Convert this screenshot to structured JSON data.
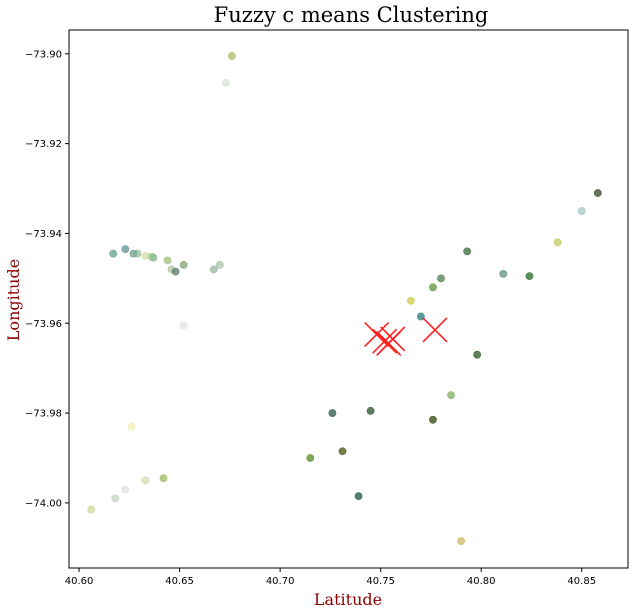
{
  "chart_data": {
    "type": "scatter",
    "title": "Fuzzy c means Clustering",
    "xlabel": "Latitude",
    "ylabel": "Longitude",
    "xlim": [
      40.595,
      40.873
    ],
    "ylim": [
      -74.0145,
      -73.8947
    ],
    "x_ticks": [
      {
        "value": 40.6,
        "label": "40.60"
      },
      {
        "value": 40.65,
        "label": "40.65"
      },
      {
        "value": 40.7,
        "label": "40.70"
      },
      {
        "value": 40.75,
        "label": "40.75"
      },
      {
        "value": 40.8,
        "label": "40.80"
      },
      {
        "value": 40.85,
        "label": "40.85"
      }
    ],
    "y_ticks": [
      {
        "value": -73.9,
        "label": "−73.90"
      },
      {
        "value": -73.92,
        "label": "−73.92"
      },
      {
        "value": -73.94,
        "label": "−73.94"
      },
      {
        "value": -73.96,
        "label": "−73.96"
      },
      {
        "value": -73.98,
        "label": "−73.98"
      },
      {
        "value": -74.0,
        "label": "−74.00"
      }
    ],
    "grid": false,
    "legend": "none",
    "points": [
      {
        "x": 40.676,
        "y": -73.9005,
        "color": "#a3b55c",
        "opacity": 0.7
      },
      {
        "x": 40.673,
        "y": -73.9065,
        "color": "#c9d4c9",
        "opacity": 0.5
      },
      {
        "x": 40.858,
        "y": -73.931,
        "color": "#4a5a3a",
        "opacity": 0.85
      },
      {
        "x": 40.85,
        "y": -73.935,
        "color": "#8fb8b8",
        "opacity": 0.6
      },
      {
        "x": 40.838,
        "y": -73.942,
        "color": "#bfc95a",
        "opacity": 0.7
      },
      {
        "x": 40.793,
        "y": -73.944,
        "color": "#4f7a4f",
        "opacity": 0.85
      },
      {
        "x": 40.811,
        "y": -73.949,
        "color": "#5a8a7a",
        "opacity": 0.7
      },
      {
        "x": 40.824,
        "y": -73.9495,
        "color": "#3f7a3f",
        "opacity": 0.85
      },
      {
        "x": 40.78,
        "y": -73.95,
        "color": "#5a8a5a",
        "opacity": 0.8
      },
      {
        "x": 40.776,
        "y": -73.952,
        "color": "#6a9a4a",
        "opacity": 0.8
      },
      {
        "x": 40.765,
        "y": -73.955,
        "color": "#c9c93a",
        "opacity": 0.7
      },
      {
        "x": 40.77,
        "y": -73.9585,
        "color": "#2a7a7a",
        "opacity": 0.75
      },
      {
        "x": 40.798,
        "y": -73.967,
        "color": "#3f6a3a",
        "opacity": 0.85
      },
      {
        "x": 40.785,
        "y": -73.976,
        "color": "#7aa65a",
        "opacity": 0.7
      },
      {
        "x": 40.745,
        "y": -73.9795,
        "color": "#3f6a4a",
        "opacity": 0.85
      },
      {
        "x": 40.726,
        "y": -73.98,
        "color": "#3f6a5a",
        "opacity": 0.85
      },
      {
        "x": 40.776,
        "y": -73.9815,
        "color": "#4a5a2a",
        "opacity": 0.85
      },
      {
        "x": 40.715,
        "y": -73.99,
        "color": "#6a9a3a",
        "opacity": 0.85
      },
      {
        "x": 40.731,
        "y": -73.9885,
        "color": "#5a6a2a",
        "opacity": 0.85
      },
      {
        "x": 40.739,
        "y": -73.9985,
        "color": "#3a6a4a",
        "opacity": 0.85
      },
      {
        "x": 40.79,
        "y": -74.0085,
        "color": "#c9b35a",
        "opacity": 0.7
      },
      {
        "x": 40.617,
        "y": -73.9445,
        "color": "#5a9a7a",
        "opacity": 0.7
      },
      {
        "x": 40.623,
        "y": -73.9435,
        "color": "#5a8a8a",
        "opacity": 0.7
      },
      {
        "x": 40.627,
        "y": -73.9445,
        "color": "#6a9a8a",
        "opacity": 0.7
      },
      {
        "x": 40.629,
        "y": -73.9445,
        "color": "#7aaa8a",
        "opacity": 0.6
      },
      {
        "x": 40.633,
        "y": -73.945,
        "color": "#c9d48a",
        "opacity": 0.55
      },
      {
        "x": 40.636,
        "y": -73.9452,
        "color": "#a3c97a",
        "opacity": 0.6
      },
      {
        "x": 40.637,
        "y": -73.9454,
        "color": "#7ab08a",
        "opacity": 0.65
      },
      {
        "x": 40.644,
        "y": -73.946,
        "color": "#9ab36a",
        "opacity": 0.65
      },
      {
        "x": 40.646,
        "y": -73.948,
        "color": "#a3b58a",
        "opacity": 0.6
      },
      {
        "x": 40.648,
        "y": -73.9485,
        "color": "#5a7a6a",
        "opacity": 0.75
      },
      {
        "x": 40.652,
        "y": -73.947,
        "color": "#7a9a6a",
        "opacity": 0.7
      },
      {
        "x": 40.667,
        "y": -73.948,
        "color": "#8aaa8a",
        "opacity": 0.65
      },
      {
        "x": 40.67,
        "y": -73.947,
        "color": "#9ab39a",
        "opacity": 0.6
      },
      {
        "x": 40.652,
        "y": -73.9605,
        "color": "#d4dcd0",
        "opacity": 0.5
      },
      {
        "x": 40.626,
        "y": -73.983,
        "color": "#f2e9a3",
        "opacity": 0.6
      },
      {
        "x": 40.642,
        "y": -73.9945,
        "color": "#9ab35a",
        "opacity": 0.7
      },
      {
        "x": 40.633,
        "y": -73.995,
        "color": "#c9d4a3",
        "opacity": 0.6
      },
      {
        "x": 40.623,
        "y": -73.997,
        "color": "#d4dcd4",
        "opacity": 0.55
      },
      {
        "x": 40.618,
        "y": -73.999,
        "color": "#b8c9b8",
        "opacity": 0.6
      },
      {
        "x": 40.606,
        "y": -74.0015,
        "color": "#c9d48a",
        "opacity": 0.65
      }
    ],
    "centers": [
      {
        "x": 40.748,
        "y": -73.9625,
        "color": "#ff2020"
      },
      {
        "x": 40.752,
        "y": -73.964,
        "color": "#ff2020"
      },
      {
        "x": 40.754,
        "y": -73.9645,
        "color": "#ff2020"
      },
      {
        "x": 40.756,
        "y": -73.9635,
        "color": "#ff2020"
      },
      {
        "x": 40.777,
        "y": -73.9615,
        "color": "#ff2020"
      }
    ]
  }
}
